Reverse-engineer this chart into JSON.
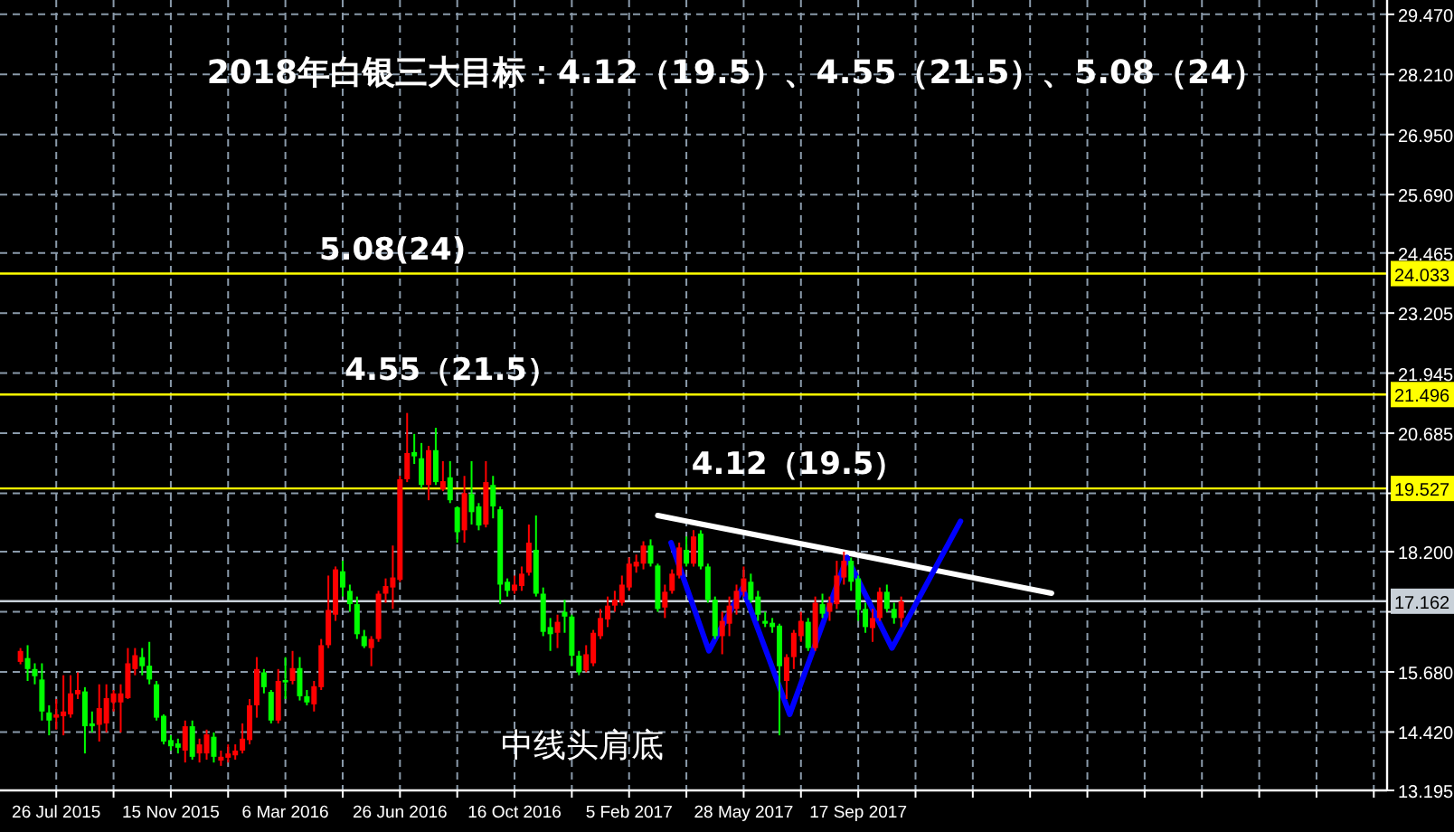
{
  "chart_data": {
    "type": "candlestick",
    "title": "2018年白银三大目标：4.12（19.5）、4.55（21.5）、5.08（24）",
    "x": [
      "2015-06-21",
      "2015-06-28",
      "2015-07-05",
      "2015-07-12",
      "2015-07-19",
      "2015-07-26",
      "2015-08-02",
      "2015-08-09",
      "2015-08-16",
      "2015-08-23",
      "2015-08-30",
      "2015-09-06",
      "2015-09-13",
      "2015-09-20",
      "2015-09-27",
      "2015-10-04",
      "2015-10-11",
      "2015-10-18",
      "2015-10-25",
      "2015-11-01",
      "2015-11-08",
      "2015-11-15",
      "2015-11-22",
      "2015-11-29",
      "2015-12-06",
      "2015-12-13",
      "2015-12-20",
      "2015-12-27",
      "2016-01-03",
      "2016-01-10",
      "2016-01-17",
      "2016-01-24",
      "2016-01-31",
      "2016-02-07",
      "2016-02-14",
      "2016-02-21",
      "2016-02-28",
      "2016-03-06",
      "2016-03-13",
      "2016-03-20",
      "2016-03-27",
      "2016-04-03",
      "2016-04-10",
      "2016-04-17",
      "2016-04-24",
      "2016-05-01",
      "2016-05-08",
      "2016-05-15",
      "2016-05-22",
      "2016-05-29",
      "2016-06-05",
      "2016-06-12",
      "2016-06-19",
      "2016-06-26",
      "2016-07-03",
      "2016-07-10",
      "2016-07-17",
      "2016-07-24",
      "2016-07-31",
      "2016-08-07",
      "2016-08-14",
      "2016-08-21",
      "2016-08-28",
      "2016-09-04",
      "2016-09-11",
      "2016-09-18",
      "2016-09-25",
      "2016-10-02",
      "2016-10-09",
      "2016-10-16",
      "2016-10-23",
      "2016-10-30",
      "2016-11-06",
      "2016-11-13",
      "2016-11-20",
      "2016-11-27",
      "2016-12-04",
      "2016-12-11",
      "2016-12-18",
      "2016-12-25",
      "2017-01-01",
      "2017-01-08",
      "2017-01-15",
      "2017-01-22",
      "2017-01-29",
      "2017-02-05",
      "2017-02-12",
      "2017-02-19",
      "2017-02-26",
      "2017-03-05",
      "2017-03-12",
      "2017-03-19",
      "2017-03-26",
      "2017-04-02",
      "2017-04-09",
      "2017-04-16",
      "2017-04-23",
      "2017-04-30",
      "2017-05-07",
      "2017-05-14",
      "2017-05-21",
      "2017-05-28",
      "2017-06-04",
      "2017-06-11",
      "2017-06-18",
      "2017-06-25",
      "2017-07-02",
      "2017-07-09",
      "2017-07-16",
      "2017-07-23",
      "2017-07-30",
      "2017-08-06",
      "2017-08-13",
      "2017-08-20",
      "2017-08-27",
      "2017-09-03",
      "2017-09-10",
      "2017-09-17",
      "2017-09-24",
      "2017-10-01",
      "2017-10-08",
      "2017-10-15",
      "2017-10-22",
      "2017-10-29"
    ],
    "ohlc": [
      [
        15.89,
        16.18,
        15.84,
        16.12
      ],
      [
        15.97,
        16.24,
        15.49,
        15.74
      ],
      [
        15.74,
        15.86,
        15.42,
        15.59
      ],
      [
        15.52,
        15.86,
        14.66,
        14.85
      ],
      [
        14.83,
        14.98,
        14.35,
        14.66
      ],
      [
        14.72,
        15.11,
        14.47,
        14.79
      ],
      [
        14.75,
        15.61,
        14.35,
        14.85
      ],
      [
        14.79,
        15.61,
        14.72,
        15.23
      ],
      [
        15.21,
        15.67,
        15.11,
        15.3
      ],
      [
        15.27,
        15.36,
        13.97,
        14.54
      ],
      [
        14.6,
        14.85,
        14.41,
        14.54
      ],
      [
        14.57,
        15.42,
        14.22,
        14.92
      ],
      [
        14.6,
        15.42,
        14.41,
        15.13
      ],
      [
        15.04,
        15.3,
        14.85,
        15.23
      ],
      [
        15.04,
        15.42,
        14.41,
        15.23
      ],
      [
        15.13,
        16.18,
        15.11,
        15.86
      ],
      [
        15.74,
        16.18,
        15.61,
        16.03
      ],
      [
        15.99,
        16.18,
        15.61,
        15.8
      ],
      [
        15.81,
        16.31,
        15.42,
        15.52
      ],
      [
        15.42,
        15.49,
        14.66,
        14.72
      ],
      [
        14.76,
        14.79,
        14.16,
        14.22
      ],
      [
        14.25,
        14.35,
        14.03,
        14.12
      ],
      [
        14.18,
        14.28,
        13.97,
        14.09
      ],
      [
        14.03,
        14.66,
        13.78,
        14.54
      ],
      [
        14.54,
        14.66,
        13.84,
        13.9
      ],
      [
        13.97,
        14.28,
        13.78,
        14.16
      ],
      [
        13.97,
        14.47,
        13.84,
        14.37
      ],
      [
        14.32,
        14.41,
        13.78,
        13.9
      ],
      [
        13.82,
        14.03,
        13.71,
        13.9
      ],
      [
        13.88,
        14.16,
        13.78,
        13.97
      ],
      [
        13.93,
        14.16,
        13.84,
        14.03
      ],
      [
        14.03,
        14.6,
        13.97,
        14.28
      ],
      [
        14.25,
        15.11,
        14.16,
        14.98
      ],
      [
        14.98,
        15.99,
        14.72,
        15.74
      ],
      [
        15.67,
        15.74,
        15.23,
        15.36
      ],
      [
        15.26,
        15.3,
        14.6,
        14.66
      ],
      [
        14.66,
        15.74,
        14.6,
        15.49
      ],
      [
        15.51,
        15.99,
        15.11,
        15.46
      ],
      [
        15.49,
        16.12,
        15.42,
        15.76
      ],
      [
        15.76,
        15.99,
        15.08,
        15.17
      ],
      [
        15.17,
        15.3,
        14.98,
        15.04
      ],
      [
        15.0,
        15.49,
        14.85,
        15.38
      ],
      [
        15.36,
        16.37,
        15.3,
        16.24
      ],
      [
        16.24,
        17.7,
        16.18,
        16.98
      ],
      [
        16.88,
        17.89,
        16.75,
        17.83
      ],
      [
        17.79,
        18.01,
        17.26,
        17.45
      ],
      [
        17.38,
        17.51,
        16.94,
        17.1
      ],
      [
        17.1,
        17.26,
        16.37,
        16.47
      ],
      [
        16.43,
        16.56,
        16.18,
        16.22
      ],
      [
        16.18,
        16.43,
        15.8,
        16.37
      ],
      [
        16.37,
        17.38,
        16.31,
        17.32
      ],
      [
        17.32,
        17.64,
        17.13,
        17.48
      ],
      [
        17.45,
        18.33,
        17.0,
        17.66
      ],
      [
        17.61,
        19.79,
        17.57,
        19.72
      ],
      [
        19.72,
        21.11,
        19.66,
        20.27
      ],
      [
        20.29,
        20.67,
        20.04,
        20.2
      ],
      [
        20.16,
        20.48,
        19.53,
        19.6
      ],
      [
        19.6,
        20.42,
        19.28,
        20.33
      ],
      [
        20.33,
        20.8,
        19.6,
        19.66
      ],
      [
        19.51,
        20.1,
        19.47,
        19.68
      ],
      [
        19.76,
        20.1,
        19.22,
        19.28
      ],
      [
        19.13,
        19.15,
        18.39,
        18.61
      ],
      [
        18.65,
        19.79,
        18.39,
        19.43
      ],
      [
        19.41,
        20.1,
        18.77,
        19.03
      ],
      [
        19.15,
        19.22,
        18.65,
        18.75
      ],
      [
        18.77,
        20.1,
        18.71,
        19.66
      ],
      [
        19.6,
        19.79,
        18.9,
        19.15
      ],
      [
        19.09,
        19.15,
        17.1,
        17.51
      ],
      [
        17.57,
        17.64,
        17.26,
        17.38
      ],
      [
        17.38,
        17.7,
        17.32,
        17.51
      ],
      [
        17.48,
        17.89,
        17.38,
        17.74
      ],
      [
        17.76,
        18.77,
        17.7,
        18.39
      ],
      [
        18.24,
        18.96,
        17.26,
        17.32
      ],
      [
        17.32,
        17.45,
        16.43,
        16.52
      ],
      [
        16.62,
        16.81,
        16.12,
        16.47
      ],
      [
        16.5,
        16.88,
        16.18,
        16.73
      ],
      [
        16.94,
        17.19,
        16.5,
        16.84
      ],
      [
        16.84,
        16.88,
        15.8,
        16.02
      ],
      [
        16.02,
        16.12,
        15.61,
        15.67
      ],
      [
        15.71,
        16.24,
        15.67,
        16.05
      ],
      [
        15.86,
        16.56,
        15.8,
        16.5
      ],
      [
        16.43,
        17.0,
        16.37,
        16.81
      ],
      [
        16.78,
        17.26,
        16.62,
        17.07
      ],
      [
        17.07,
        17.38,
        16.94,
        17.19
      ],
      [
        17.13,
        17.7,
        17.07,
        17.51
      ],
      [
        17.45,
        18.08,
        17.38,
        17.95
      ],
      [
        17.89,
        18.14,
        17.76,
        17.99
      ],
      [
        17.95,
        18.42,
        17.83,
        18.33
      ],
      [
        18.33,
        18.46,
        17.89,
        17.95
      ],
      [
        17.91,
        17.95,
        16.94,
        17.0
      ],
      [
        17.03,
        17.51,
        16.81,
        17.36
      ],
      [
        17.38,
        17.83,
        17.32,
        17.74
      ],
      [
        17.7,
        18.39,
        17.64,
        18.29
      ],
      [
        18.24,
        18.52,
        17.89,
        17.95
      ],
      [
        17.95,
        18.65,
        17.89,
        18.52
      ],
      [
        18.58,
        18.65,
        17.83,
        17.89
      ],
      [
        17.89,
        17.95,
        17.13,
        17.19
      ],
      [
        17.19,
        17.26,
        16.37,
        16.43
      ],
      [
        16.43,
        16.94,
        16.05,
        16.75
      ],
      [
        16.69,
        17.26,
        16.43,
        17.07
      ],
      [
        17.0,
        17.51,
        16.88,
        17.38
      ],
      [
        17.36,
        17.89,
        17.26,
        17.64
      ],
      [
        17.57,
        17.74,
        17.13,
        17.19
      ],
      [
        17.26,
        17.38,
        16.75,
        16.88
      ],
      [
        16.75,
        16.94,
        16.62,
        16.69
      ],
      [
        16.71,
        16.81,
        16.5,
        16.62
      ],
      [
        16.65,
        16.69,
        14.35,
        15.8
      ],
      [
        15.49,
        16.05,
        15.11,
        15.99
      ],
      [
        15.99,
        16.56,
        15.74,
        16.5
      ],
      [
        16.43,
        16.94,
        16.31,
        16.75
      ],
      [
        16.73,
        16.81,
        16.12,
        16.18
      ],
      [
        16.18,
        17.26,
        16.12,
        17.13
      ],
      [
        17.1,
        17.32,
        16.81,
        16.9
      ],
      [
        16.94,
        17.26,
        16.75,
        17.13
      ],
      [
        17.1,
        18.01,
        17.0,
        17.7
      ],
      [
        17.66,
        18.2,
        17.51,
        18.01
      ],
      [
        18.01,
        18.08,
        17.38,
        17.57
      ],
      [
        17.64,
        17.7,
        16.75,
        16.98
      ],
      [
        17.0,
        17.13,
        16.5,
        16.62
      ],
      [
        16.6,
        17.0,
        16.31,
        16.81
      ],
      [
        16.81,
        17.45,
        16.75,
        17.36
      ],
      [
        17.36,
        17.51,
        16.94,
        17.0
      ],
      [
        17.0,
        17.13,
        16.69,
        16.81
      ],
      [
        16.81,
        17.26,
        16.62,
        17.16
      ]
    ],
    "colors": [
      "#ff0000",
      "#00ff00",
      "#00ff00",
      "#00ff00",
      "#00ff00",
      "#ff0000",
      "#ff0000",
      "#ff0000",
      "#ff0000",
      "#00ff00",
      "#00ff00",
      "#ff0000",
      "#ff0000",
      "#ff0000",
      "#ff0000",
      "#ff0000",
      "#ff0000",
      "#00ff00",
      "#00ff00",
      "#00ff00",
      "#00ff00",
      "#00ff00",
      "#00ff00",
      "#ff0000",
      "#00ff00",
      "#ff0000",
      "#ff0000",
      "#00ff00",
      "#ff0000",
      "#ff0000",
      "#ff0000",
      "#ff0000",
      "#ff0000",
      "#ff0000",
      "#00ff00",
      "#00ff00",
      "#ff0000",
      "#00ff00",
      "#ff0000",
      "#00ff00",
      "#00ff00",
      "#ff0000",
      "#ff0000",
      "#ff0000",
      "#ff0000",
      "#00ff00",
      "#00ff00",
      "#00ff00",
      "#00ff00",
      "#ff0000",
      "#ff0000",
      "#ff0000",
      "#ff0000",
      "#ff0000",
      "#ff0000",
      "#00ff00",
      "#00ff00",
      "#ff0000",
      "#00ff00",
      "#ff0000",
      "#00ff00",
      "#00ff00",
      "#ff0000",
      "#00ff00",
      "#00ff00",
      "#ff0000",
      "#00ff00",
      "#00ff00",
      "#00ff00",
      "#ff0000",
      "#ff0000",
      "#ff0000",
      "#00ff00",
      "#00ff00",
      "#00ff00",
      "#ff0000",
      "#00ff00",
      "#00ff00",
      "#00ff00",
      "#ff0000",
      "#ff0000",
      "#ff0000",
      "#ff0000",
      "#ff0000",
      "#ff0000",
      "#ff0000",
      "#ff0000",
      "#ff0000",
      "#00ff00",
      "#00ff00",
      "#ff0000",
      "#ff0000",
      "#ff0000",
      "#00ff00",
      "#ff0000",
      "#00ff00",
      "#00ff00",
      "#00ff00",
      "#ff0000",
      "#ff0000",
      "#ff0000",
      "#ff0000",
      "#00ff00",
      "#00ff00",
      "#00ff00",
      "#00ff00",
      "#00ff00",
      "#ff0000",
      "#ff0000",
      "#ff0000",
      "#00ff00",
      "#ff0000",
      "#00ff00",
      "#ff0000",
      "#ff0000",
      "#ff0000",
      "#00ff00",
      "#00ff00",
      "#00ff00",
      "#ff0000",
      "#ff0000",
      "#00ff00",
      "#00ff00",
      "#ff0000"
    ],
    "series": [
      {
        "type": "line",
        "color": "#ffffff",
        "x": [
          "2017-03-05",
          "2018-03-25"
        ],
        "values": [
          18.96,
          17.33
        ]
      },
      {
        "type": "line",
        "color": "#0000ff",
        "x": [
          "2017-03-18",
          "2017-04-24",
          "2017-05-27",
          "2017-07-12",
          "2017-09-06",
          "2017-10-20",
          "2017-12-26"
        ],
        "values": [
          18.39,
          16.12,
          17.44,
          14.79,
          18.08,
          16.18,
          18.84
        ]
      }
    ],
    "xlim": [
      "2015-06-01",
      "2019-02-16"
    ],
    "ylim": [
      13.195,
      29.77
    ],
    "xticks": [
      {
        "value": "2015-07-26",
        "label": "26 Jul 2015"
      },
      {
        "value": "2015-09-20",
        "label": null
      },
      {
        "value": "2015-11-15",
        "label": "15 Nov 2015"
      },
      {
        "value": "2016-01-10",
        "label": null
      },
      {
        "value": "2016-03-06",
        "label": "6 Mar 2016"
      },
      {
        "value": "2016-05-01",
        "label": null
      },
      {
        "value": "2016-06-26",
        "label": "26 Jun 2016"
      },
      {
        "value": "2016-08-21",
        "label": null
      },
      {
        "value": "2016-10-16",
        "label": "16 Oct 2016"
      },
      {
        "value": "2016-12-11",
        "label": null
      },
      {
        "value": "2017-02-05",
        "label": "5 Feb 2017"
      },
      {
        "value": "2017-04-02",
        "label": null
      },
      {
        "value": "2017-05-28",
        "label": "28 May 2017"
      },
      {
        "value": "2017-07-23",
        "label": null
      },
      {
        "value": "2017-09-17",
        "label": "17 Sep 2017"
      },
      {
        "value": "2017-11-12",
        "label": null
      },
      {
        "value": "2018-01-07",
        "label": null
      },
      {
        "value": "2018-03-04",
        "label": null
      },
      {
        "value": "2018-04-29",
        "label": null
      },
      {
        "value": "2018-06-24",
        "label": null
      },
      {
        "value": "2018-08-19",
        "label": null
      },
      {
        "value": "2018-10-14",
        "label": null
      },
      {
        "value": "2018-12-09",
        "label": null
      },
      {
        "value": "2019-02-03",
        "label": null
      }
    ],
    "yticks": [
      {
        "value": 13.195,
        "label": "13.195"
      },
      {
        "value": 14.42,
        "label": "14.420"
      },
      {
        "value": 15.68,
        "label": "15.680"
      },
      {
        "value": 16.94,
        "label": null
      },
      {
        "value": 18.2,
        "label": "18.200"
      },
      {
        "value": 19.425,
        "label": null
      },
      {
        "value": 20.685,
        "label": "20.685"
      },
      {
        "value": 21.945,
        "label": "21.945"
      },
      {
        "value": 23.205,
        "label": "23.205"
      },
      {
        "value": 24.465,
        "label": "24.465"
      },
      {
        "value": 25.69,
        "label": "25.690"
      },
      {
        "value": 26.95,
        "label": "26.950"
      },
      {
        "value": 28.21,
        "label": "28.210"
      },
      {
        "value": 29.47,
        "label": "29.470"
      }
    ],
    "grid": true,
    "ref_lines": [
      {
        "axis": "y",
        "value": 24.033,
        "label": "24.033",
        "color": "#ffff00"
      },
      {
        "axis": "y",
        "value": 21.496,
        "label": "21.496",
        "color": "#ffff00"
      },
      {
        "axis": "y",
        "value": 19.527,
        "label": "19.527",
        "color": "#ffff00"
      },
      {
        "axis": "y",
        "value": 17.162,
        "label": "17.162",
        "color": "#c8d0d8"
      }
    ],
    "annotations": [
      {
        "text": "5.08(24)",
        "x": "2016-04-08",
        "y": 24.033
      },
      {
        "text": "4.55（21.5）",
        "x": "2016-05-03",
        "y": 21.496
      },
      {
        "text": "4.12（19.5）",
        "x": "2017-04-07",
        "y": 19.527
      },
      "中线头肩底"
    ]
  }
}
